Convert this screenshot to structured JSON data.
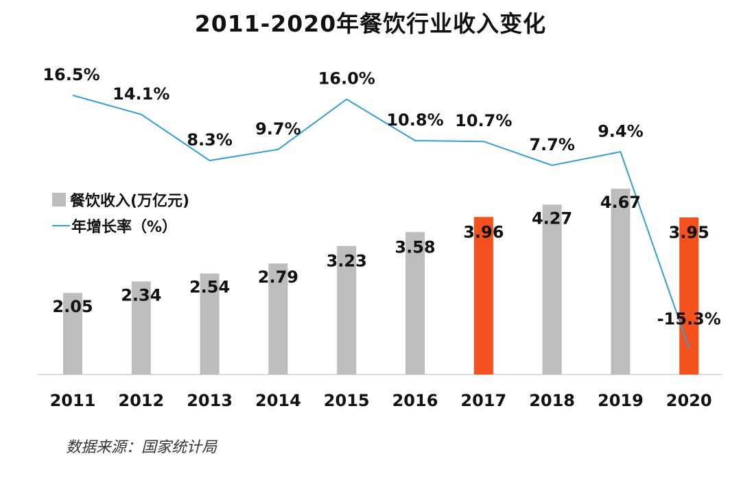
{
  "title": "2011-2020年餐饮行业收入变化",
  "legend": {
    "bar_label": "餐饮收入(万亿元)",
    "line_label": "年增长率（%）"
  },
  "source": "数据来源：国家统计局",
  "colors": {
    "bar_default": "#bdbdbd",
    "bar_highlight": "#f4511e",
    "line": "#2f9fd6",
    "axis": "#d0d0d0",
    "text": "#111111"
  },
  "chart_data": {
    "type": "bar",
    "categories": [
      "2011",
      "2012",
      "2013",
      "2014",
      "2015",
      "2016",
      "2017",
      "2018",
      "2019",
      "2020"
    ],
    "series": [
      {
        "name": "餐饮收入(万亿元)",
        "type": "bar",
        "values": [
          2.05,
          2.34,
          2.54,
          2.79,
          3.23,
          3.58,
          3.96,
          4.27,
          4.67,
          3.95
        ],
        "labels": [
          "2.05",
          "2.34",
          "2.54",
          "2.79",
          "3.23",
          "3.58",
          "3.96",
          "4.27",
          "4.67",
          "3.95"
        ],
        "highlight": [
          false,
          false,
          false,
          false,
          false,
          false,
          true,
          false,
          false,
          true
        ]
      },
      {
        "name": "年增长率（%）",
        "type": "line",
        "values": [
          16.5,
          14.1,
          8.3,
          9.7,
          16.0,
          10.8,
          10.7,
          7.7,
          9.4,
          -15.3
        ],
        "labels": [
          "16.5%",
          "14.1%",
          "8.3%",
          "9.7%",
          "16.0%",
          "10.8%",
          "10.7%",
          "7.7%",
          "9.4%",
          "-15.3%"
        ]
      }
    ],
    "grid": false,
    "legend_position": "left-middle"
  }
}
